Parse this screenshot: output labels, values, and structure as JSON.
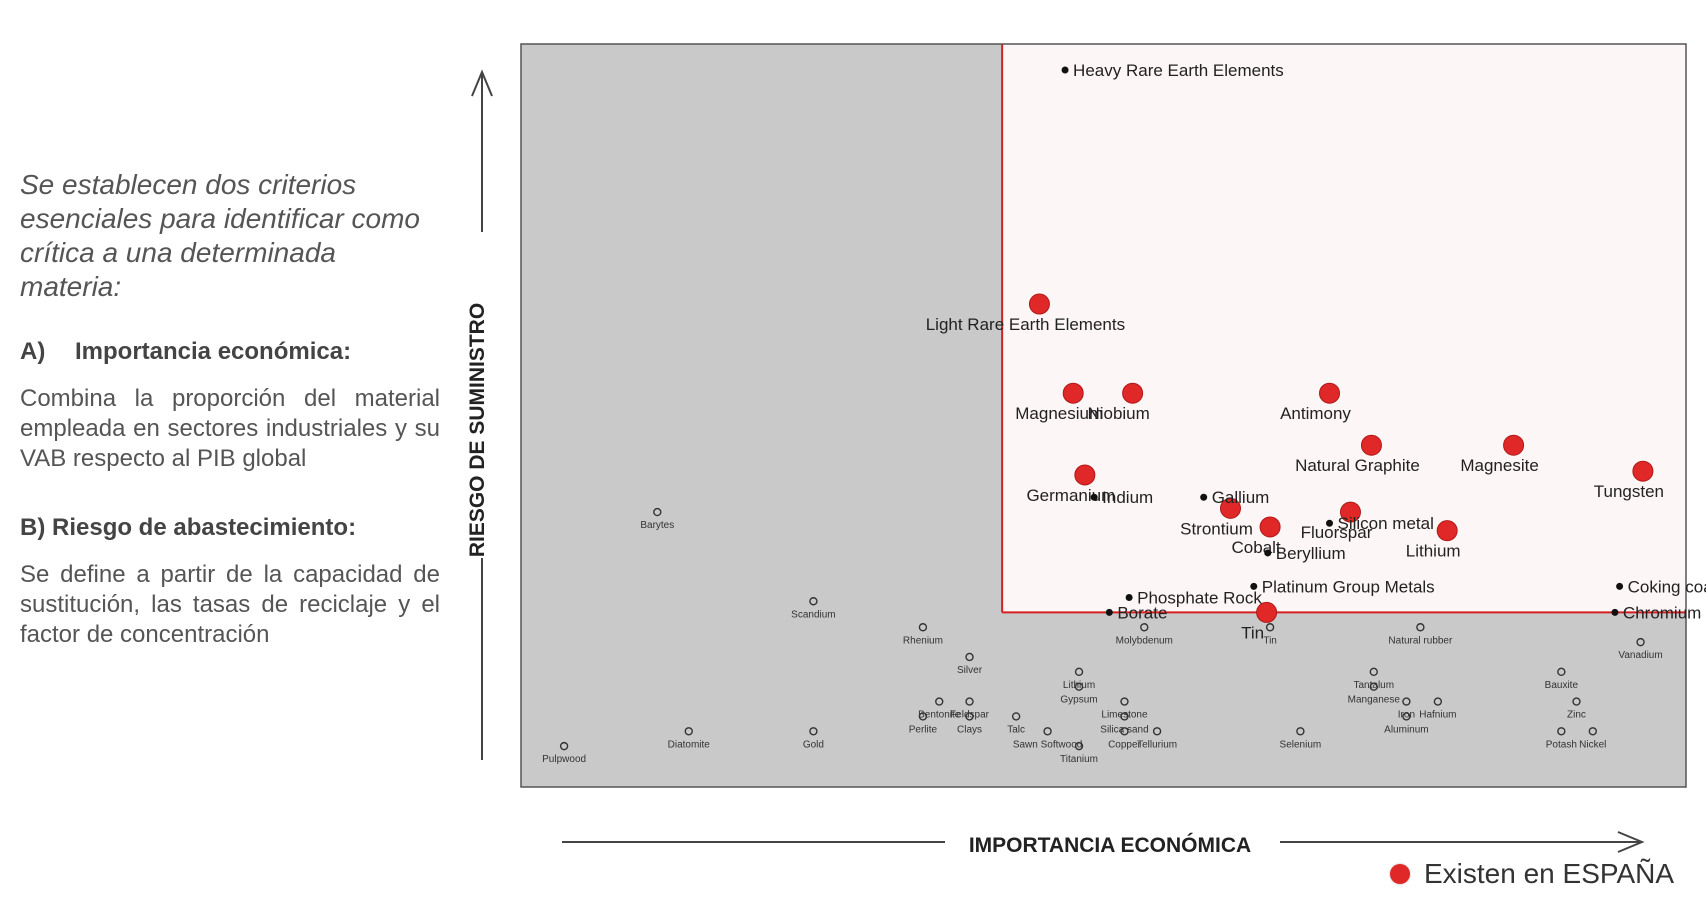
{
  "text_panel": {
    "intro": "Se establecen dos criterios esenciales para identificar como crítica a una determinada materia:",
    "criteria": [
      {
        "letter": "A)",
        "title": "Importancia económica:",
        "body": "Combina la proporción del material empleada en sectores industriales y su VAB respecto al PIB global"
      },
      {
        "letter": "B)",
        "title": "Riesgo de abastecimiento:",
        "body": "Se define a partir de la capacidad de sustitución, las tasas de reciclaje y el factor de concentración"
      }
    ]
  },
  "legend": {
    "label": "Existen en ESPAÑA",
    "color": "#e02828"
  },
  "colors": {
    "critical_region": "#fdf6f6",
    "noncritical_region": "#c9c9c9",
    "threshold_line": "#d42020",
    "marker": "#e02828"
  },
  "chart_data": {
    "type": "scatter",
    "xlabel": "IMPORTANCIA ECONÓMICA",
    "ylabel": "RIESGO DE SUMINISTRO",
    "xlim": [
      0,
      100
    ],
    "ylim": [
      0,
      100
    ],
    "critical_threshold": {
      "x": 41.3,
      "y": 23.5
    },
    "series": [
      {
        "name": "Existen en ESPAÑA",
        "marker": "red_circle",
        "points": [
          {
            "label": "Light Rare Earth Elements",
            "x": 44.5,
            "y": 65.0
          },
          {
            "label": "Magnesium",
            "x": 47.4,
            "y": 53.0
          },
          {
            "label": "Niobium",
            "x": 52.5,
            "y": 53.0
          },
          {
            "label": "Antimony",
            "x": 69.4,
            "y": 53.0
          },
          {
            "label": "Natural Graphite",
            "x": 73.0,
            "y": 46.0
          },
          {
            "label": "Magnesite",
            "x": 85.2,
            "y": 46.0
          },
          {
            "label": "Tungsten",
            "x": 96.3,
            "y": 42.5
          },
          {
            "label": "Germanium",
            "x": 48.4,
            "y": 42.0
          },
          {
            "label": "Strontium",
            "x": 60.9,
            "y": 37.5
          },
          {
            "label": "Cobalt",
            "x": 64.3,
            "y": 35.0
          },
          {
            "label": "Fluorspar",
            "x": 71.2,
            "y": 37.0
          },
          {
            "label": "Lithium",
            "x": 79.5,
            "y": 34.5
          },
          {
            "label": "Tin",
            "x": 64.0,
            "y": 23.5
          }
        ]
      },
      {
        "name": "critical",
        "marker": "black_dot",
        "points": [
          {
            "label": "Heavy Rare Earth Elements",
            "x": 46.7,
            "y": 96.5
          },
          {
            "label": "Indium",
            "x": 49.2,
            "y": 39.0
          },
          {
            "label": "Gallium",
            "x": 58.6,
            "y": 39.0
          },
          {
            "label": "Silicon metal",
            "x": 69.4,
            "y": 35.5
          },
          {
            "label": "Beryllium",
            "x": 64.1,
            "y": 31.5
          },
          {
            "label": "Platinum Group Metals",
            "x": 62.9,
            "y": 27.0
          },
          {
            "label": "Phosphate Rock",
            "x": 52.2,
            "y": 25.5
          },
          {
            "label": "Borate",
            "x": 50.5,
            "y": 23.5
          },
          {
            "label": "Coking coal",
            "x": 94.3,
            "y": 27.0
          },
          {
            "label": "Chromium",
            "x": 93.9,
            "y": 23.5
          }
        ]
      },
      {
        "name": "non-critical",
        "marker": "hollow_circle",
        "points": [
          {
            "label": "Barytes",
            "x": 11.7,
            "y": 37.0
          },
          {
            "label": "Scandium",
            "x": 25.1,
            "y": 25.0
          },
          {
            "label": "Rhenium",
            "x": 34.5,
            "y": 21.5
          },
          {
            "label": "Molybdenum",
            "x": 53.5,
            "y": 21.5
          },
          {
            "label": "Tin",
            "x": 64.3,
            "y": 21.5
          },
          {
            "label": "Natural rubber",
            "x": 77.2,
            "y": 21.5
          },
          {
            "label": "Vanadium",
            "x": 96.1,
            "y": 19.5
          },
          {
            "label": "Silver",
            "x": 38.5,
            "y": 17.5
          },
          {
            "label": "Lithium",
            "x": 47.9,
            "y": 15.5
          },
          {
            "label": "Tantalum",
            "x": 73.2,
            "y": 15.5
          },
          {
            "label": "Bauxite",
            "x": 89.3,
            "y": 15.5
          },
          {
            "label": "Feldspar",
            "x": 38.5,
            "y": 11.5
          },
          {
            "label": "Gypsum",
            "x": 47.9,
            "y": 13.5
          },
          {
            "label": "Manganese",
            "x": 73.2,
            "y": 13.5
          },
          {
            "label": "Bentonite",
            "x": 35.9,
            "y": 11.5
          },
          {
            "label": "Limestone",
            "x": 51.8,
            "y": 11.5
          },
          {
            "label": "Iron",
            "x": 76.0,
            "y": 11.5
          },
          {
            "label": "Hafnium",
            "x": 78.7,
            "y": 11.5
          },
          {
            "label": "Zinc",
            "x": 90.6,
            "y": 11.5
          },
          {
            "label": "Clays",
            "x": 38.5,
            "y": 9.5
          },
          {
            "label": "Talc",
            "x": 42.5,
            "y": 9.5
          },
          {
            "label": "Silica sand",
            "x": 51.8,
            "y": 9.5
          },
          {
            "label": "Aluminum",
            "x": 76.0,
            "y": 9.5
          },
          {
            "label": "Perlite",
            "x": 34.5,
            "y": 9.5
          },
          {
            "label": "Sawn Softwood",
            "x": 45.2,
            "y": 7.5
          },
          {
            "label": "Titanium",
            "x": 47.9,
            "y": 5.5
          },
          {
            "label": "Copper",
            "x": 51.8,
            "y": 7.5
          },
          {
            "label": "Tellurium",
            "x": 54.6,
            "y": 7.5
          },
          {
            "label": "Selenium",
            "x": 66.9,
            "y": 7.5
          },
          {
            "label": "Potash",
            "x": 89.3,
            "y": 7.5
          },
          {
            "label": "Nickel",
            "x": 92.0,
            "y": 7.5
          },
          {
            "label": "Diatomite",
            "x": 14.4,
            "y": 7.5
          },
          {
            "label": "Gold",
            "x": 25.1,
            "y": 7.5
          },
          {
            "label": "Pulpwood",
            "x": 3.7,
            "y": 5.5
          }
        ]
      }
    ]
  }
}
